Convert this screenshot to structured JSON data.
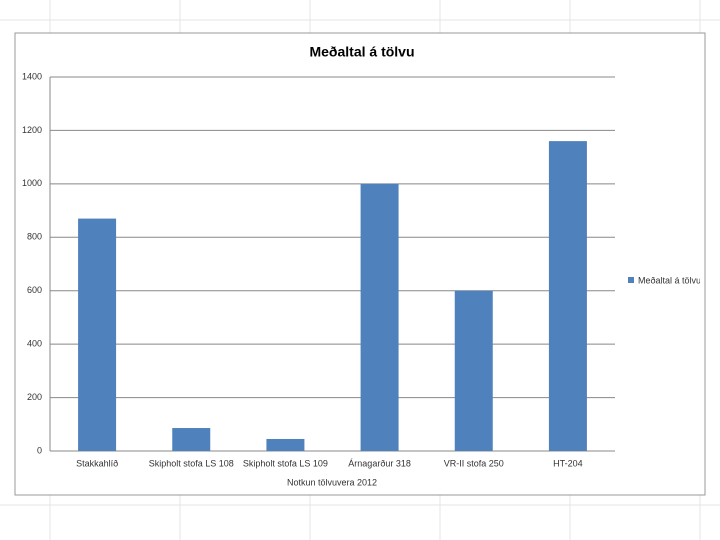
{
  "chart_data": {
    "type": "bar",
    "title": "Meðaltal á tölvu",
    "x_label": "Notkun tölvuvera 2012",
    "categories": [
      "Stakkahlíð",
      "Skipholt stofa LS 108",
      "Skipholt stofa LS 109",
      "Árnagarður 318",
      "VR-II stofa 250",
      "HT-204"
    ],
    "series": [
      {
        "name": "Meðaltal á tölvu",
        "color": "#4f81bd",
        "values": [
          870,
          86,
          45,
          1000,
          600,
          1160
        ]
      }
    ],
    "ylim": [
      0,
      1400
    ],
    "yticks": [
      0,
      200,
      400,
      600,
      800,
      1000,
      1200,
      1400
    ],
    "grid": true,
    "legend": "right"
  }
}
